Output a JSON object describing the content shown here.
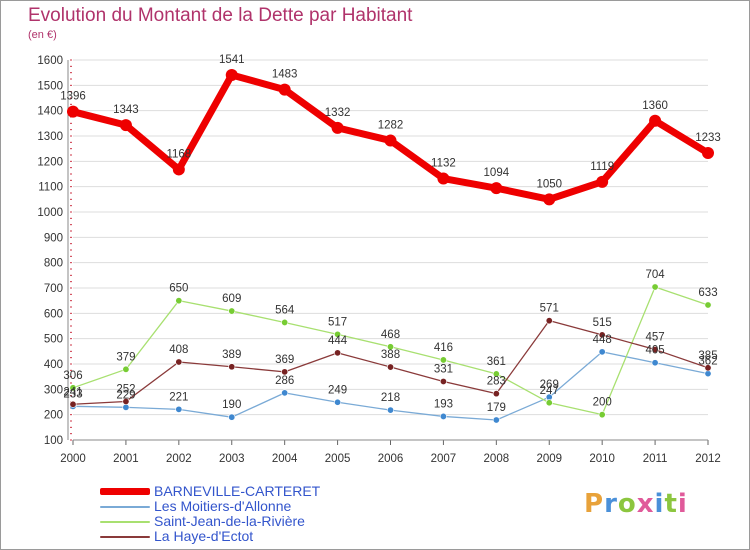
{
  "title": "Evolution du Montant de la Dette par Habitant",
  "subtitle": "(en €)",
  "logo_text": "Proxiti",
  "colors": {
    "title": "#b0336b",
    "axis_text": "#333333",
    "grid": "#dddddd",
    "legend_text": "#3355cc"
  },
  "legend": [
    {
      "label": "BARNEVILLE-CARTERET",
      "color": "#ee0000"
    },
    {
      "label": "Les Moitiers-d'Allonne",
      "color": "#5b9bd5"
    },
    {
      "label": "Saint-Jean-de-la-Rivière",
      "color": "#99dd55"
    },
    {
      "label": "La Haye-d'Ectot",
      "color": "#772222"
    }
  ],
  "chart_data": {
    "type": "line",
    "title": "Evolution du Montant de la Dette par Habitant",
    "subtitle": "(en €)",
    "x": [
      "2000",
      "2001",
      "2002",
      "2003",
      "2004",
      "2005",
      "2006",
      "2007",
      "2008",
      "2009",
      "2010",
      "2011",
      "2012"
    ],
    "ylim": [
      100,
      1600
    ],
    "yticks": [
      100,
      200,
      300,
      400,
      500,
      600,
      700,
      800,
      900,
      1000,
      1100,
      1200,
      1300,
      1400,
      1500,
      1600
    ],
    "grid": true,
    "legend_position": "bottom",
    "series": [
      {
        "name": "BARNEVILLE-CARTERET",
        "color": "#ee0000",
        "point_color": "#ee0000",
        "width": 7,
        "marker": 6,
        "values": [
          1396,
          1343,
          1168,
          1541,
          1483,
          1332,
          1282,
          1132,
          1094,
          1050,
          1119,
          1360,
          1233
        ],
        "labels": [
          "1396",
          "1343",
          "1168",
          "1541",
          "1483",
          "1332",
          "1282",
          "1132",
          "1094",
          "1050",
          "1119",
          "1360",
          "1233"
        ]
      },
      {
        "name": "Les Moitiers-d'Allonne",
        "color": "#7aaad6",
        "point_color": "#3f88d0",
        "width": 1.3,
        "marker": 3.2,
        "values": [
          233,
          229,
          221,
          190,
          286,
          249,
          218,
          193,
          179,
          269,
          448,
          405,
          362
        ],
        "labels": [
          "233",
          "229",
          "221",
          "190",
          "286",
          "249",
          "218",
          "193",
          "179",
          "269",
          "448",
          "405",
          "362"
        ]
      },
      {
        "name": "Saint-Jean-de-la-Rivière",
        "color": "#a8e070",
        "point_color": "#77cc33",
        "width": 1.3,
        "marker": 3.2,
        "values": [
          306,
          379,
          650,
          609,
          564,
          517,
          468,
          416,
          361,
          247,
          200,
          704,
          633
        ],
        "labels": [
          "306",
          "379",
          "650",
          "609",
          "564",
          "517",
          "468",
          "416",
          "361",
          "247",
          "200",
          "704",
          "633"
        ]
      },
      {
        "name": "La Haye-d'Ectot",
        "color": "#8a3a3a",
        "point_color": "#772222",
        "width": 1.3,
        "marker": 3.2,
        "values": [
          241,
          252,
          408,
          389,
          369,
          444,
          388,
          331,
          283,
          571,
          515,
          457,
          385
        ],
        "labels": [
          "241",
          "252",
          "408",
          "389",
          "369",
          "444",
          "388",
          "331",
          "283",
          "571",
          "515",
          "457",
          "385"
        ]
      }
    ]
  }
}
